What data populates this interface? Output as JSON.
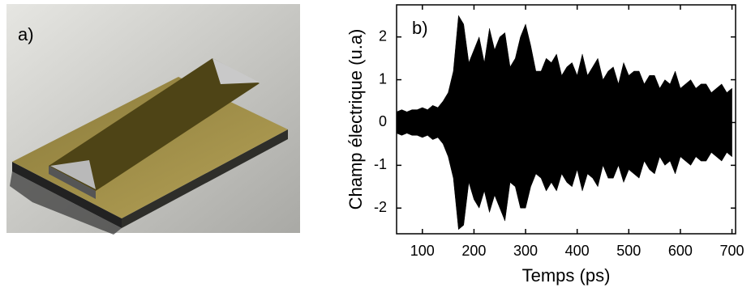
{
  "image_label": "a)",
  "chart_data": {
    "type": "area",
    "annotation": "b)",
    "x_label": "Temps (ps)",
    "y_label": "Champ électrique (u.a)",
    "x": [
      50,
      60,
      70,
      80,
      90,
      100,
      110,
      120,
      130,
      140,
      150,
      160,
      170,
      180,
      190,
      200,
      210,
      220,
      230,
      240,
      250,
      260,
      270,
      280,
      290,
      300,
      310,
      320,
      330,
      340,
      350,
      360,
      370,
      380,
      390,
      400,
      410,
      420,
      430,
      440,
      450,
      460,
      470,
      480,
      490,
      500,
      510,
      520,
      530,
      540,
      550,
      560,
      570,
      580,
      590,
      600,
      610,
      620,
      630,
      640,
      650,
      660,
      670,
      680,
      690,
      700
    ],
    "series": [
      {
        "color": "#000000",
        "values": [
          0.25,
          0.3,
          0.25,
          0.3,
          0.3,
          0.35,
          0.3,
          0.4,
          0.35,
          0.5,
          0.7,
          1.2,
          2.5,
          2.3,
          1.4,
          1.7,
          2.0,
          1.4,
          2.2,
          1.7,
          2.0,
          2.1,
          1.3,
          1.5,
          2.0,
          2.3,
          1.8,
          1.2,
          1.2,
          1.5,
          1.4,
          1.6,
          1.1,
          1.3,
          1.4,
          1.1,
          1.6,
          1.1,
          1.3,
          1.5,
          1.0,
          1.2,
          1.3,
          0.9,
          1.4,
          1.1,
          1.2,
          1.2,
          0.9,
          1.1,
          1.1,
          0.8,
          1.0,
          0.9,
          1.2,
          0.8,
          0.9,
          1.0,
          0.8,
          0.9,
          0.9,
          0.7,
          0.8,
          0.9,
          0.7,
          0.8
        ]
      },
      {
        "color": "#000000",
        "values": [
          -0.25,
          -0.3,
          -0.25,
          -0.3,
          -0.3,
          -0.35,
          -0.3,
          -0.4,
          -0.35,
          -0.5,
          -0.8,
          -1.3,
          -2.5,
          -2.4,
          -1.4,
          -1.8,
          -2.0,
          -1.6,
          -2.1,
          -1.7,
          -2.0,
          -2.3,
          -1.4,
          -1.5,
          -2.0,
          -2.0,
          -1.5,
          -1.2,
          -1.3,
          -1.6,
          -1.4,
          -1.6,
          -1.2,
          -1.4,
          -1.5,
          -1.1,
          -1.6,
          -1.2,
          -1.3,
          -1.5,
          -1.0,
          -1.3,
          -1.3,
          -1.0,
          -1.4,
          -1.1,
          -1.2,
          -1.3,
          -0.9,
          -1.1,
          -1.2,
          -0.8,
          -1.0,
          -0.9,
          -1.2,
          -0.8,
          -0.9,
          -1.0,
          -0.8,
          -0.9,
          -0.9,
          -0.7,
          -0.8,
          -0.9,
          -0.7,
          -0.8
        ]
      }
    ],
    "xlim": [
      50,
      707
    ],
    "xticks": [
      100,
      200,
      300,
      400,
      500,
      600,
      700
    ],
    "ylim": [
      -2.6,
      2.75
    ],
    "yticks": [
      -2,
      -1,
      0,
      1,
      2
    ]
  }
}
